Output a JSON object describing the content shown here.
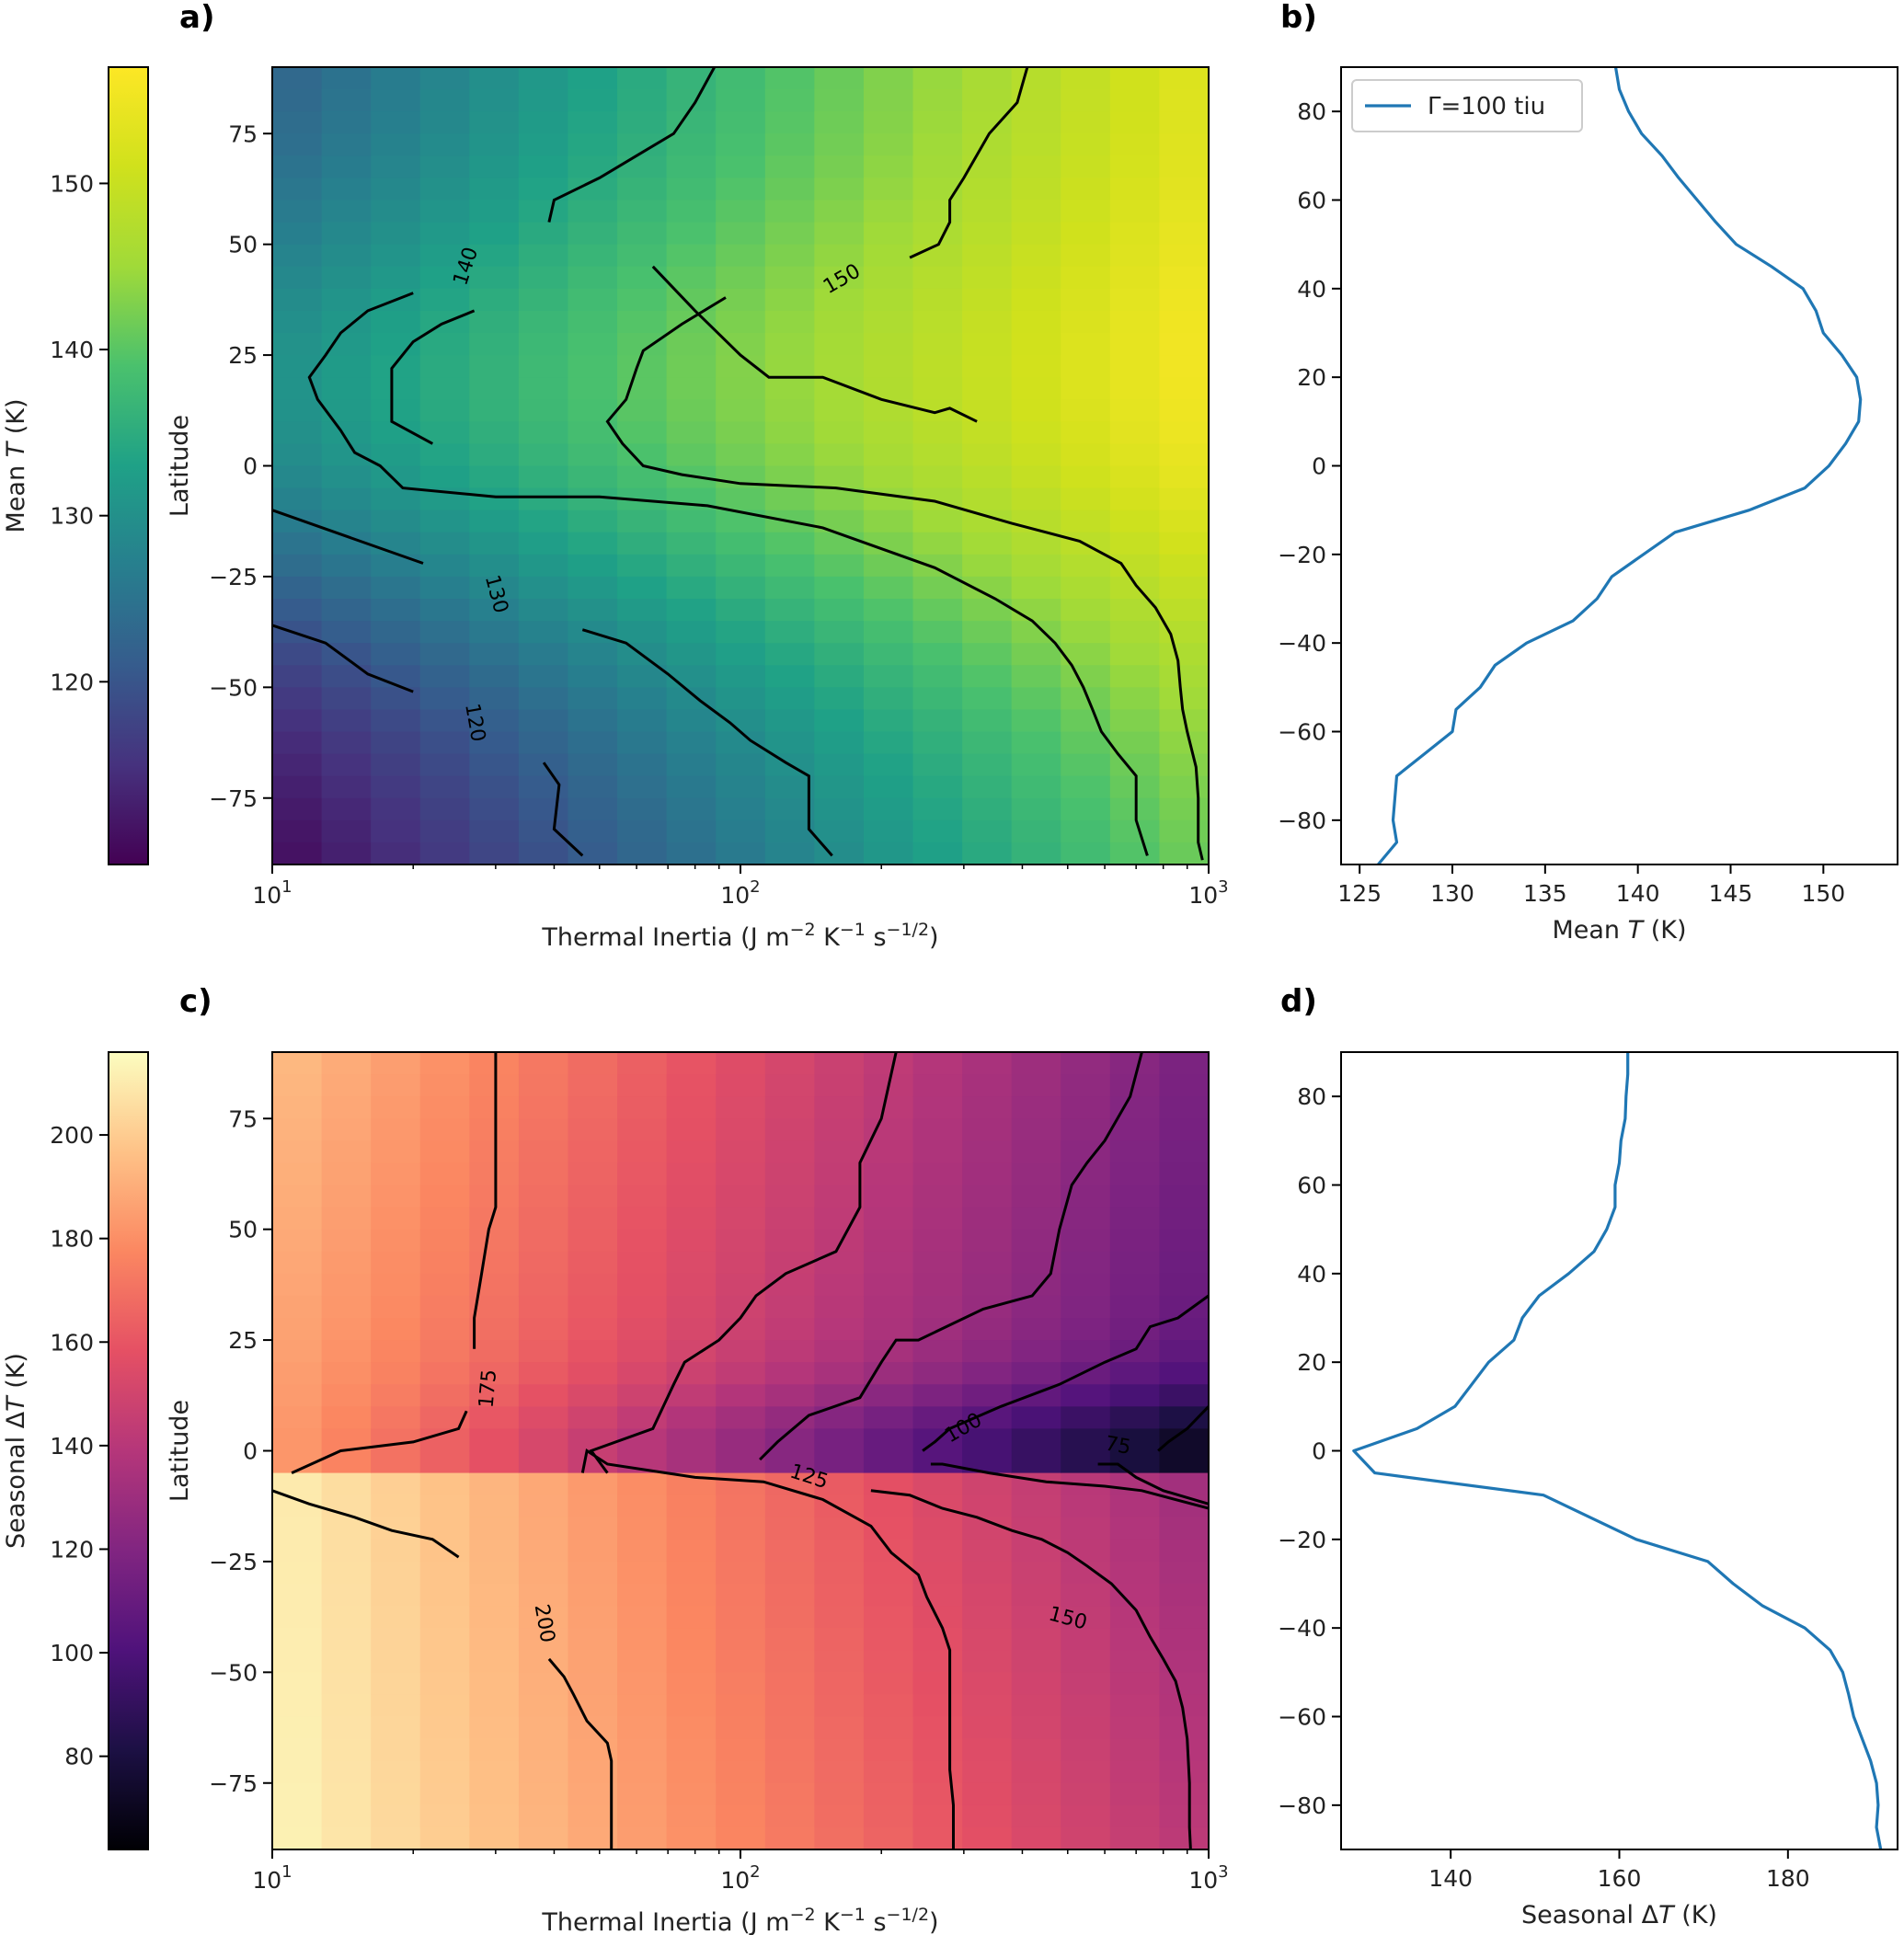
{
  "figure": {
    "panels": [
      "a)",
      "b)",
      "c)",
      "d)"
    ]
  },
  "chart_data": [
    {
      "id": "a",
      "type": "heatmap",
      "colormap": "viridis",
      "xscale": "log",
      "xlabel": "Thermal Inertia (J m⁻² K⁻¹ s⁻¹ᐟ²)",
      "xlabel_parts": [
        "Thermal Inertia (J m",
        "−2",
        " K",
        "−1",
        " s",
        "−1/2",
        ")"
      ],
      "ylabel": "Latitude",
      "xlim": [
        10,
        1000
      ],
      "ylim": [
        -90,
        90
      ],
      "x_ticks": [
        {
          "value": 10,
          "base": "10",
          "exp": "1"
        },
        {
          "value": 100,
          "base": "10",
          "exp": "2"
        },
        {
          "value": 1000,
          "base": "10",
          "exp": "3"
        }
      ],
      "y_ticks": [
        -75,
        -50,
        -25,
        0,
        25,
        50,
        75
      ],
      "colorbar": {
        "label": "Mean T (K)",
        "label_parts": [
          "Mean ",
          "T",
          " (K)"
        ],
        "range": [
          109,
          157
        ],
        "ticks": [
          120,
          130,
          140,
          150
        ]
      },
      "model": "mean",
      "contour_levels": [
        120,
        130,
        140,
        150
      ],
      "contour_labels": [
        {
          "text": "140",
          "ti": 26,
          "lat": 45,
          "rot": -72
        },
        {
          "text": "150",
          "ti": 165,
          "lat": 42,
          "rot": -30
        },
        {
          "text": "130",
          "ti": 30,
          "lat": -29,
          "rot": 75
        },
        {
          "text": "120",
          "ti": 27,
          "lat": -58,
          "rot": 80
        }
      ]
    },
    {
      "id": "b",
      "type": "line",
      "xlabel": "Mean T (K)",
      "xlabel_parts": [
        "Mean ",
        "T",
        " (K)"
      ],
      "ylabel": "",
      "xlim": [
        124,
        154
      ],
      "ylim": [
        -90,
        90
      ],
      "x_ticks": [
        125,
        130,
        135,
        140,
        145,
        150
      ],
      "y_ticks": [
        -80,
        -60,
        -40,
        -20,
        0,
        20,
        40,
        60,
        80
      ],
      "legend": {
        "position": "top-left",
        "entries": [
          "Γ=100 tiu"
        ]
      },
      "series": [
        {
          "name": "Γ=100 tiu",
          "color": "#1f77b4",
          "x": [
            126.0,
            127.0,
            126.8,
            126.9,
            127.0,
            128.5,
            130.0,
            130.2,
            131.5,
            132.3,
            134.0,
            136.5,
            137.8,
            138.6,
            142.0,
            146.0,
            149.0,
            150.3,
            151.2,
            151.9,
            152.0,
            151.8,
            151.0,
            150.0,
            149.6,
            148.9,
            147.2,
            145.3,
            144.2,
            143.2,
            142.2,
            141.3,
            140.2,
            139.5,
            139.0,
            138.8
          ],
          "y": [
            -90,
            -85,
            -80,
            -75,
            -70,
            -65,
            -60,
            -55,
            -50,
            -45,
            -40,
            -35,
            -30,
            -25,
            -15,
            -10,
            -5,
            0,
            5,
            10,
            15,
            20,
            25,
            30,
            35,
            40,
            45,
            50,
            55,
            60,
            65,
            70,
            75,
            80,
            85,
            90
          ]
        }
      ]
    },
    {
      "id": "c",
      "type": "heatmap",
      "colormap": "magma",
      "xscale": "log",
      "xlabel": "Thermal Inertia (J m⁻² K⁻¹ s⁻¹ᐟ²)",
      "xlabel_parts": [
        "Thermal Inertia (J m",
        "−2",
        " K",
        "−1",
        " s",
        "−1/2",
        ")"
      ],
      "ylabel": "Latitude",
      "xlim": [
        10,
        1000
      ],
      "ylim": [
        -90,
        90
      ],
      "x_ticks": [
        {
          "value": 10,
          "base": "10",
          "exp": "1"
        },
        {
          "value": 100,
          "base": "10",
          "exp": "2"
        },
        {
          "value": 1000,
          "base": "10",
          "exp": "3"
        }
      ],
      "y_ticks": [
        -75,
        -50,
        -25,
        0,
        25,
        50,
        75
      ],
      "colorbar": {
        "label": "Seasonal ΔT (K)",
        "label_parts": [
          "Seasonal Δ",
          "T",
          " (K)"
        ],
        "range": [
          62,
          216
        ],
        "ticks": [
          80,
          100,
          120,
          140,
          160,
          180,
          200
        ]
      },
      "model": "seasonal",
      "contour_levels": [
        75,
        100,
        125,
        150,
        175,
        200
      ],
      "contour_labels": [
        {
          "text": "175",
          "ti": 29,
          "lat": 14,
          "rot": -85
        },
        {
          "text": "200",
          "ti": 38,
          "lat": -39,
          "rot": 80
        },
        {
          "text": "125",
          "ti": 140,
          "lat": -6,
          "rot": 18
        },
        {
          "text": "100",
          "ti": 300,
          "lat": 5,
          "rot": -30
        },
        {
          "text": "75",
          "ti": 640,
          "lat": 1,
          "rot": 10
        },
        {
          "text": "150",
          "ti": 500,
          "lat": -38,
          "rot": 15
        }
      ]
    },
    {
      "id": "d",
      "type": "line",
      "xlabel": "Seasonal ΔT (K)",
      "xlabel_parts": [
        "Seasonal Δ",
        "T",
        " (K)"
      ],
      "ylabel": "",
      "xlim": [
        127,
        193
      ],
      "ylim": [
        -90,
        90
      ],
      "x_ticks": [
        140,
        160,
        180
      ],
      "y_ticks": [
        -80,
        -60,
        -40,
        -20,
        0,
        20,
        40,
        60,
        80
      ],
      "series": [
        {
          "name": "Seasonal ΔT",
          "color": "#1f77b4",
          "x": [
            191.0,
            190.5,
            190.7,
            190.5,
            189.8,
            188.8,
            187.8,
            187.2,
            186.5,
            185.0,
            182.0,
            177.0,
            173.5,
            170.5,
            162.0,
            151.0,
            131.0,
            128.5,
            136.0,
            140.5,
            142.5,
            144.5,
            147.5,
            148.5,
            150.5,
            154.0,
            157.0,
            158.5,
            159.5,
            159.5,
            160.0,
            160.2,
            160.7,
            160.8,
            161.0,
            161.0
          ],
          "y": [
            -90,
            -85,
            -80,
            -75,
            -70,
            -65,
            -60,
            -55,
            -50,
            -45,
            -40,
            -35,
            -30,
            -25,
            -20,
            -10,
            -5,
            0,
            5,
            10,
            15,
            20,
            25,
            30,
            35,
            40,
            45,
            50,
            55,
            60,
            65,
            70,
            75,
            80,
            85,
            90
          ]
        }
      ]
    }
  ]
}
